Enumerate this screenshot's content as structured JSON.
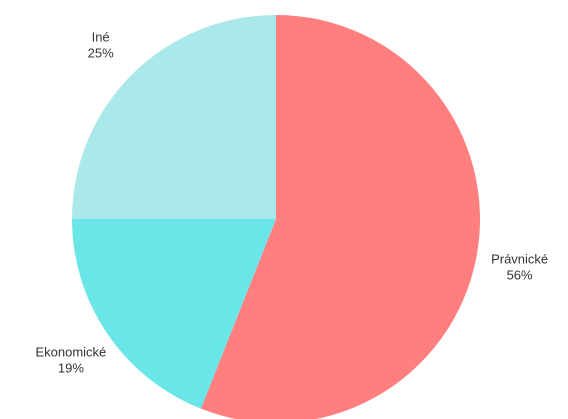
{
  "chart_data": {
    "type": "pie",
    "title": "",
    "start_angle_deg": 0,
    "direction": "clockwise",
    "slices": [
      {
        "label": "Právnické",
        "value": 56,
        "value_label": "56%",
        "color": "#ff7f7f"
      },
      {
        "label": "Ekonomické",
        "value": 19,
        "value_label": "19%",
        "color": "#6ae6e9"
      },
      {
        "label": "Iné",
        "value": 25,
        "value_label": "25%",
        "color": "#abe8ea"
      }
    ]
  }
}
